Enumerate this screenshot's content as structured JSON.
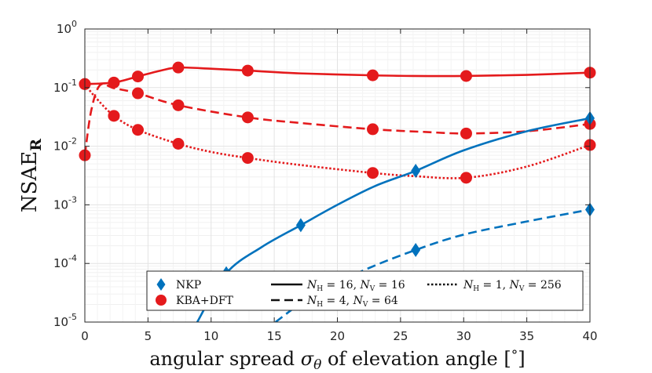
{
  "chart_data": {
    "type": "line",
    "title": "",
    "xlabel": "angular spread σ_θ of elevation angle [°]",
    "xlabel_parts": {
      "pre": "angular spread ",
      "sigma": "σ",
      "theta": "θ",
      "post": " of elevation angle [",
      "degree": "°",
      "end": "]"
    },
    "ylabel": "NSAE_R",
    "ylabel_parts": {
      "base": "NSAE",
      "sub": "R"
    },
    "xlim": [
      0,
      40
    ],
    "ylim": [
      1e-05,
      1
    ],
    "yscale": "log",
    "grid": true,
    "xticks": [
      0,
      5,
      10,
      15,
      20,
      25,
      30,
      35,
      40
    ],
    "yticks": [
      {
        "value": 1e-05,
        "base": "10",
        "exp": "-5"
      },
      {
        "value": 0.0001,
        "base": "10",
        "exp": "-4"
      },
      {
        "value": 0.001,
        "base": "10",
        "exp": "-3"
      },
      {
        "value": 0.01,
        "base": "10",
        "exp": "-2"
      },
      {
        "value": 0.1,
        "base": "10",
        "exp": "-1"
      },
      {
        "value": 1,
        "base": "10",
        "exp": "0"
      }
    ],
    "colors": {
      "nkp": "#0072BD",
      "kba": "#E41A1C",
      "grid": "#e3e3e3",
      "axis": "#262626"
    },
    "series": [
      {
        "name": "KBA+DFT, N_H=16, N_V=16",
        "method": "KBA+DFT",
        "style": "solid",
        "x": [
          0,
          2.3,
          4.2,
          7.4,
          12.9,
          22.8,
          30.2,
          40
        ],
        "y": [
          0.115,
          0.122,
          0.155,
          0.22,
          0.195,
          0.162,
          0.158,
          0.18
        ],
        "curve_x": [
          0,
          2.3,
          4.2,
          6,
          7.4,
          10,
          12.9,
          17,
          22.8,
          26,
          30.2,
          35,
          40
        ],
        "curve_y": [
          0.115,
          0.122,
          0.155,
          0.195,
          0.22,
          0.21,
          0.195,
          0.175,
          0.162,
          0.158,
          0.158,
          0.165,
          0.18
        ]
      },
      {
        "name": "KBA+DFT, N_H=4, N_V=64",
        "method": "KBA+DFT",
        "style": "dashed",
        "x": [
          0,
          4.2,
          7.4,
          12.9,
          22.8,
          30.2,
          40
        ],
        "y": [
          0.007,
          0.08,
          0.05,
          0.031,
          0.0195,
          0.0165,
          0.024
        ],
        "curve_x": [
          0,
          0.5,
          1.2,
          2.3,
          4.2,
          7.4,
          12.9,
          17,
          22.8,
          27,
          30.2,
          35,
          40
        ],
        "curve_y": [
          0.007,
          0.04,
          0.11,
          0.098,
          0.08,
          0.05,
          0.031,
          0.025,
          0.0195,
          0.0175,
          0.0165,
          0.018,
          0.024
        ]
      },
      {
        "name": "KBA+DFT, N_H=1, N_V=256",
        "method": "KBA+DFT",
        "style": "dotted",
        "x": [
          0,
          2.3,
          4.2,
          7.4,
          12.9,
          22.8,
          30.2,
          40
        ],
        "y": [
          0.115,
          0.033,
          0.019,
          0.011,
          0.0063,
          0.0035,
          0.0029,
          0.0105
        ],
        "curve_x": [
          0,
          0.8,
          2.3,
          4.2,
          7.4,
          10,
          12.9,
          17,
          22.8,
          26,
          30.2,
          35,
          40
        ],
        "curve_y": [
          0.115,
          0.07,
          0.033,
          0.019,
          0.011,
          0.008,
          0.0063,
          0.0048,
          0.0035,
          0.0031,
          0.0029,
          0.0045,
          0.0105
        ]
      },
      {
        "name": "NKP, N_H=16, N_V=16",
        "method": "NKP",
        "style": "solid",
        "x": [
          11.2,
          17.1,
          26.2,
          40
        ],
        "y": [
          6.8e-05,
          0.00045,
          0.0038,
          0.03
        ],
        "curve_x": [
          8.9,
          11.2,
          14,
          17.1,
          20,
          23,
          26.2,
          30,
          35,
          40
        ],
        "curve_y": [
          1e-05,
          6.8e-05,
          0.00019,
          0.00045,
          0.001,
          0.0021,
          0.0038,
          0.0085,
          0.018,
          0.03
        ]
      },
      {
        "name": "NKP, N_H=4, N_V=64",
        "method": "NKP",
        "style": "dashed",
        "x": [
          26.2,
          40
        ],
        "y": [
          0.00017,
          0.00083
        ],
        "curve_x": [
          15.1,
          18,
          22,
          26.2,
          30,
          35,
          40
        ],
        "curve_y": [
          1e-05,
          2.8e-05,
          7.5e-05,
          0.00017,
          0.00031,
          0.00052,
          0.00083
        ]
      }
    ],
    "legend": {
      "placement": "bottom-right",
      "markers": [
        {
          "label": "NKP",
          "marker": "diamond"
        },
        {
          "label": "KBA+DFT",
          "marker": "circle"
        }
      ],
      "lines": [
        {
          "style": "solid",
          "NH": "16",
          "NV": "16"
        },
        {
          "style": "dashed",
          "NH": "4",
          "NV": "64"
        },
        {
          "style": "dotted",
          "NH": "1",
          "NV": "256"
        }
      ],
      "sym_N": "N",
      "sub_H": "H",
      "sub_V": "V",
      "eq": "=",
      "sep": ","
    }
  }
}
